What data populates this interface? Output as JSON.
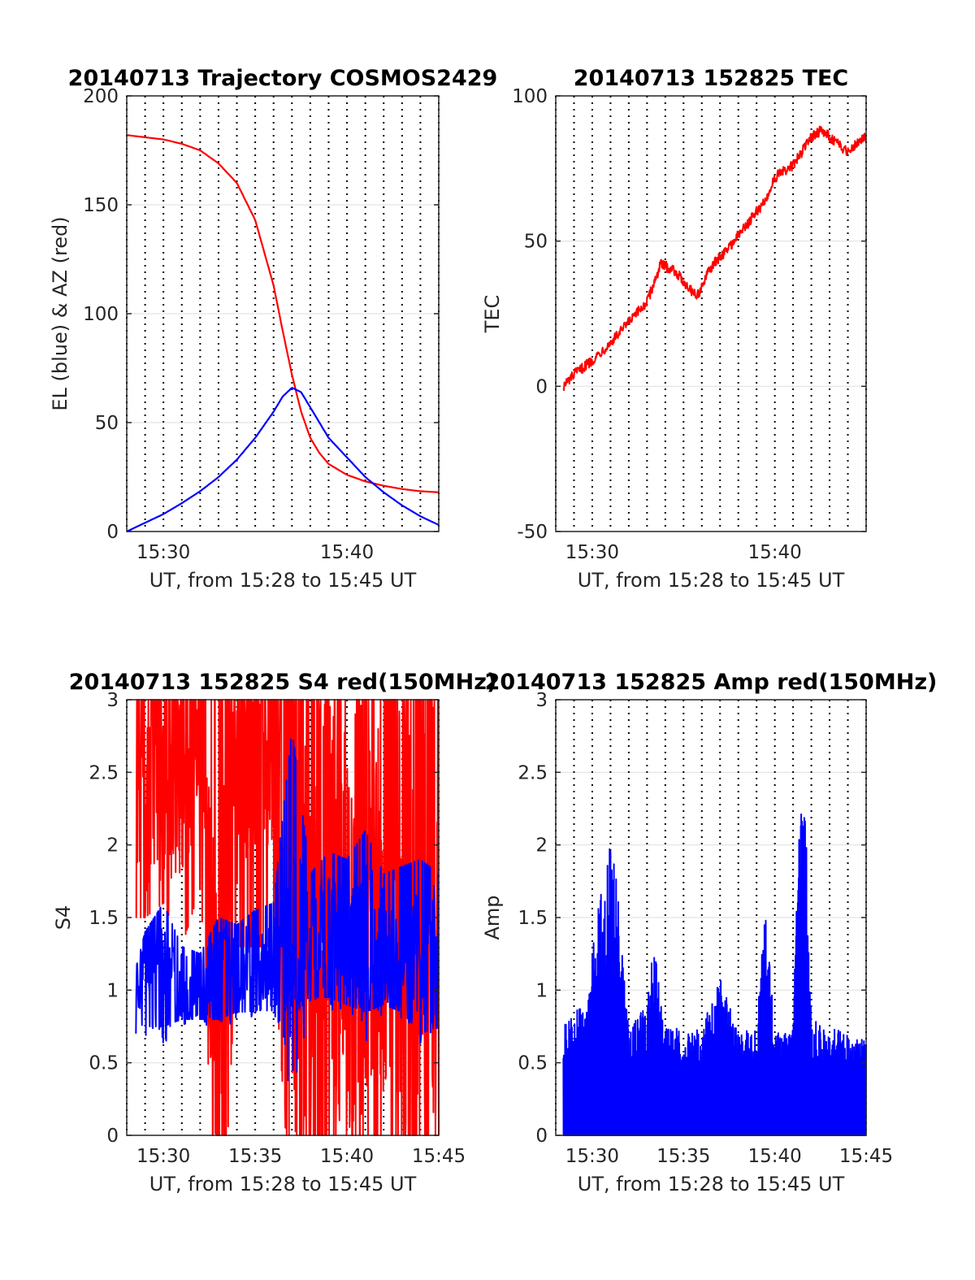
{
  "chart_data": [
    {
      "type": "line",
      "title": "20140713 Trajectory COSMOS2429",
      "xlabel": "UT, from 15:28 to 15:45 UT",
      "ylabel": "EL (blue) & AZ (red)",
      "xlim": [
        "15:28",
        "15:45"
      ],
      "ylim": [
        0,
        200
      ],
      "xticks": [
        "15:30",
        "15:40"
      ],
      "yticks": [
        0,
        50,
        100,
        150,
        200
      ],
      "grid": true,
      "minute_gridlines": "dotted",
      "series": [
        {
          "name": "AZ",
          "color": "#ff0000",
          "x": [
            "15:28",
            "15:29",
            "15:30",
            "15:31",
            "15:32",
            "15:33",
            "15:34",
            "15:35",
            "15:36",
            "15:36:30",
            "15:37",
            "15:37:30",
            "15:38",
            "15:38:30",
            "15:39",
            "15:40",
            "15:41",
            "15:42",
            "15:43",
            "15:44",
            "15:45"
          ],
          "values": [
            182,
            181,
            180,
            178,
            175,
            169,
            160,
            143,
            113,
            92,
            72,
            55,
            43,
            36,
            31,
            26,
            23,
            21,
            19.5,
            18.5,
            18
          ]
        },
        {
          "name": "EL",
          "color": "#0000ff",
          "x": [
            "15:28",
            "15:29",
            "15:30",
            "15:31",
            "15:32",
            "15:33",
            "15:34",
            "15:35",
            "15:36",
            "15:36:30",
            "15:37",
            "15:37:30",
            "15:38",
            "15:38:30",
            "15:39",
            "15:40",
            "15:41",
            "15:42",
            "15:43",
            "15:44",
            "15:45"
          ],
          "values": [
            0,
            4,
            8,
            13,
            18.5,
            25,
            33,
            43,
            55,
            62,
            66,
            64,
            57,
            50,
            43,
            34,
            25,
            18,
            12,
            7,
            3
          ]
        }
      ]
    },
    {
      "type": "line",
      "title": "20140713 152825 TEC",
      "xlabel": "UT, from 15:28 to 15:45 UT",
      "ylabel": "TEC",
      "xlim": [
        "15:28",
        "15:45"
      ],
      "ylim": [
        -50,
        100
      ],
      "xticks": [
        "15:30",
        "15:40"
      ],
      "yticks": [
        -50,
        0,
        50,
        100
      ],
      "grid": true,
      "minute_gridlines": "dotted",
      "series": [
        {
          "name": "TEC",
          "color": "#ff0000",
          "x": [
            "15:28:25",
            "15:29",
            "15:30",
            "15:31",
            "15:32",
            "15:33",
            "15:33:45",
            "15:34:30",
            "15:35",
            "15:35:45",
            "15:36:30",
            "15:37:30",
            "15:38:30",
            "15:39:30",
            "15:40",
            "15:41",
            "15:42",
            "15:42:30",
            "15:43",
            "15:43:30",
            "15:44",
            "15:44:30",
            "15:45"
          ],
          "values": [
            0,
            4,
            9,
            15,
            22,
            29,
            42,
            40,
            36,
            31,
            41,
            48,
            56,
            64,
            72,
            76,
            86,
            88,
            86,
            83,
            81,
            84,
            86
          ]
        }
      ]
    },
    {
      "type": "line",
      "title": "20140713 152825 S4 red(150MHz)",
      "xlabel": "UT, from 15:28 to 15:45 UT",
      "ylabel": "S4",
      "xlim": [
        "15:28",
        "15:45"
      ],
      "ylim": [
        0,
        3
      ],
      "xticks": [
        "15:30",
        "15:35",
        "15:40",
        "15:45"
      ],
      "yticks": [
        0,
        0.5,
        1,
        1.5,
        2,
        2.5,
        3
      ],
      "grid": true,
      "minute_gridlines": "dotted",
      "series": [
        {
          "color": "#ff0000",
          "x": [
            "15:28:30",
            "15:29",
            "15:30",
            "15:31",
            "15:32",
            "15:32:50",
            "15:33:30",
            "15:34",
            "15:35",
            "15:36",
            "15:36:40",
            "15:38",
            "15:40",
            "15:42",
            "15:45"
          ],
          "values": [
            2.5,
            2.2,
            2.4,
            2.6,
            2.8,
            0.5,
            2.7,
            2.5,
            2.8,
            2.6,
            1.5,
            1.5,
            1.5,
            1.5,
            1.5
          ],
          "envelope_min": [
            1.5,
            1.5,
            1.6,
            1.3,
            1.7,
            0,
            0,
            1.3,
            1.3,
            1.3,
            0,
            0,
            0,
            0,
            0
          ],
          "envelope_max": [
            3,
            3,
            3,
            3,
            3,
            3,
            3,
            3,
            3,
            3,
            3,
            3,
            3,
            3,
            3
          ]
        },
        {
          "color": "#0000ff",
          "x": [
            "15:28:30",
            "15:29",
            "15:30",
            "15:31",
            "15:32",
            "15:33",
            "15:34",
            "15:35",
            "15:36",
            "15:37",
            "15:38",
            "15:39",
            "15:40",
            "15:41",
            "15:42",
            "15:43",
            "15:44",
            "15:45"
          ],
          "values": [
            0.95,
            1.0,
            1.05,
            1.0,
            1.0,
            1.05,
            1.1,
            1.15,
            1.15,
            1.2,
            1.3,
            1.35,
            1.3,
            1.25,
            1.3,
            1.3,
            1.2,
            1.25
          ],
          "envelope_min": [
            0.7,
            0.75,
            0.75,
            0.8,
            0.8,
            0.8,
            0.85,
            0.85,
            0.9,
            0.9,
            0.95,
            0.95,
            0.9,
            0.85,
            0.9,
            0.85,
            0.7,
            0.75
          ],
          "envelope_max": [
            1.15,
            1.4,
            1.6,
            1.3,
            1.25,
            1.5,
            1.45,
            1.55,
            1.6,
            2.8,
            1.8,
            1.95,
            1.9,
            2.1,
            1.8,
            1.85,
            1.9,
            1.8
          ]
        }
      ]
    },
    {
      "type": "line",
      "title": "20140713 152825 Amp red(150MHz)",
      "xlabel": "UT, from 15:28 to 15:45 UT",
      "ylabel": "Amp",
      "xlim": [
        "15:28",
        "15:45"
      ],
      "ylim": [
        0,
        3
      ],
      "xticks": [
        "15:30",
        "15:35",
        "15:40",
        "15:45"
      ],
      "yticks": [
        0,
        0.5,
        1,
        1.5,
        2,
        2.5,
        3
      ],
      "grid": true,
      "minute_gridlines": "dotted",
      "series": [
        {
          "name": "Amp",
          "color": "#0000ff",
          "x": [
            "15:28:25",
            "15:29",
            "15:29:40",
            "15:30",
            "15:30:30",
            "15:31",
            "15:31:20",
            "15:32",
            "15:33",
            "15:33:20",
            "15:34",
            "15:35",
            "15:36",
            "15:37",
            "15:38",
            "15:39",
            "15:39:30",
            "15:40",
            "15:41",
            "15:41:20",
            "15:41:40",
            "15:42",
            "15:43",
            "15:44",
            "15:45"
          ],
          "values": [
            0.75,
            0.85,
            0.9,
            1.3,
            1.7,
            2.05,
            1.85,
            0.75,
            0.9,
            1.4,
            0.8,
            0.7,
            0.75,
            1.1,
            0.7,
            0.75,
            1.6,
            0.7,
            0.75,
            2.2,
            2.3,
            0.8,
            0.75,
            0.7,
            0.65
          ],
          "floor": 0
        }
      ]
    }
  ]
}
